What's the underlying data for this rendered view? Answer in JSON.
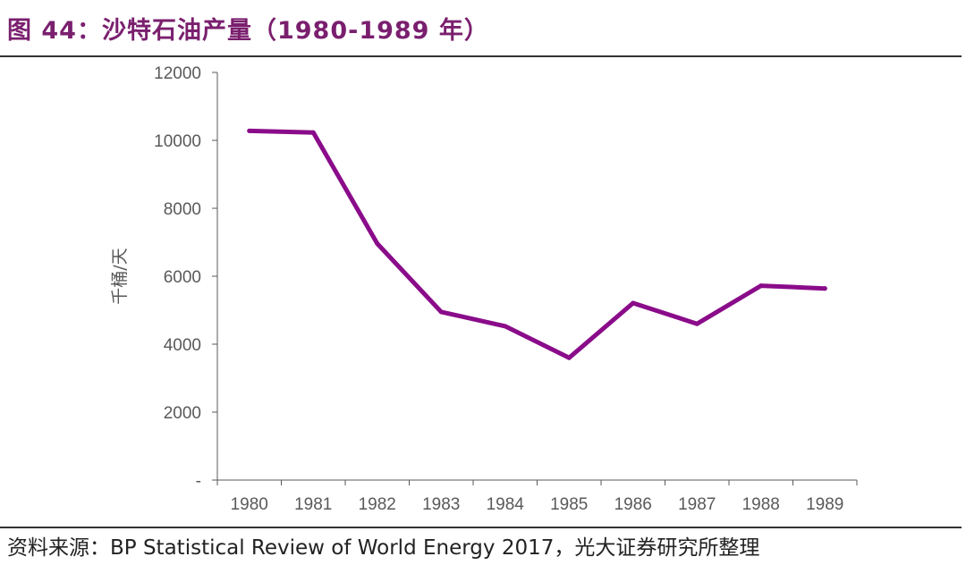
{
  "figure": {
    "title": "图 44：沙特石油产量（1980-1989 年）",
    "source": "资料来源：BP Statistical Review of World Energy 2017，光大证券研究所整理"
  },
  "colors": {
    "title": "#7a1f6e",
    "series": "#8a0c8a",
    "axis": "#595959"
  },
  "chart_data": {
    "type": "line",
    "title": "",
    "xlabel": "",
    "ylabel": "千桶/天",
    "x": [
      "1980",
      "1981",
      "1982",
      "1983",
      "1984",
      "1985",
      "1986",
      "1987",
      "1988",
      "1989"
    ],
    "series": [
      {
        "values": [
          10280,
          10230,
          6960,
          4950,
          4530,
          3600,
          5210,
          4600,
          5720,
          5640
        ]
      }
    ],
    "ylim": [
      0,
      12000
    ],
    "yticks": [
      0,
      2000,
      4000,
      6000,
      8000,
      10000,
      12000
    ],
    "ytick_labels": [
      "-",
      "2000",
      "4000",
      "6000",
      "8000",
      "10000",
      "12000"
    ],
    "grid": false,
    "legend": "none"
  }
}
